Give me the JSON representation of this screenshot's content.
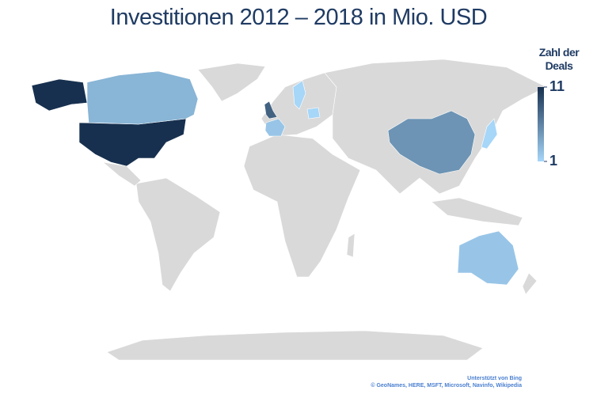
{
  "chart_data": {
    "type": "choropleth",
    "title": "Investitionen 2012 – 2018 in Mio. USD",
    "legend_title": "Zahl der Deals",
    "values": [
      11,
      8,
      5,
      3,
      2,
      2,
      1,
      1,
      1
    ],
    "colorlim": [
      1,
      11
    ],
    "colorticks": [
      1,
      11
    ],
    "colors": [
      "#a6d6f8",
      "#17304f"
    ],
    "land_color": "#d9d9d9",
    "credits": [
      "Unterstützt von Bing",
      "© GeoNames, HERE, MSFT, Microsoft, Navinfo, Wikipedia"
    ]
  }
}
